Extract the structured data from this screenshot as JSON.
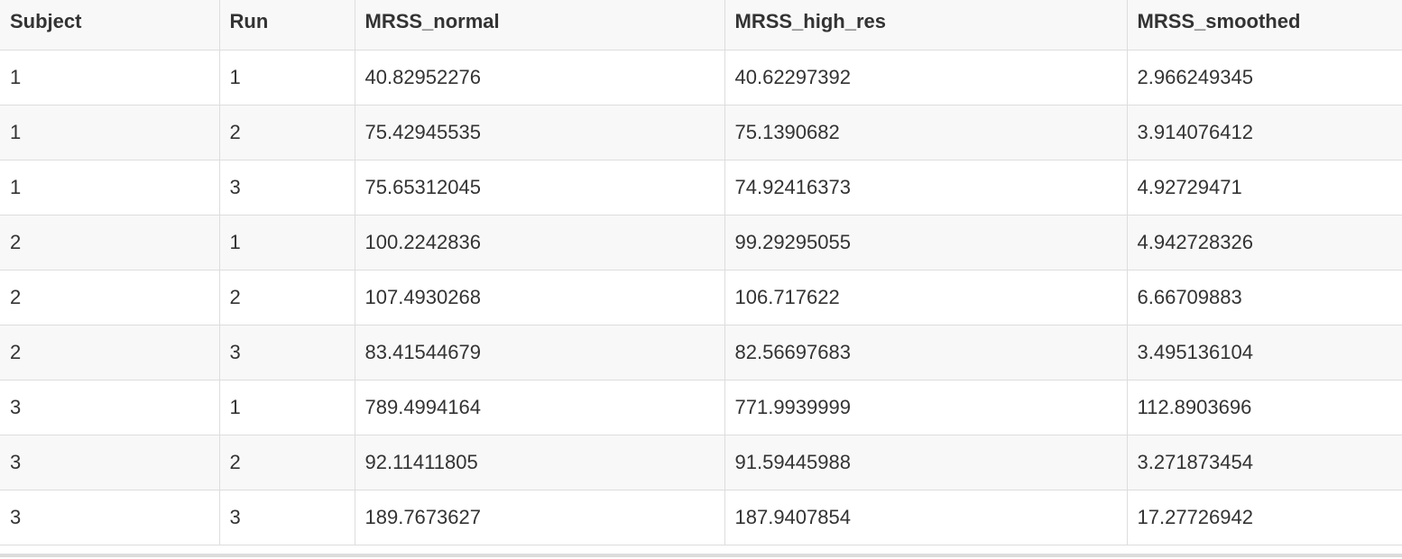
{
  "table": {
    "headers": [
      "Subject",
      "Run",
      "MRSS_normal",
      "MRSS_high_res",
      "MRSS_smoothed"
    ],
    "rows": [
      [
        "1",
        "1",
        "40.82952276",
        "40.62297392",
        "2.966249345"
      ],
      [
        "1",
        "2",
        "75.42945535",
        "75.1390682",
        "3.914076412"
      ],
      [
        "1",
        "3",
        "75.65312045",
        "74.92416373",
        "4.92729471"
      ],
      [
        "2",
        "1",
        "100.2242836",
        "99.29295055",
        "4.942728326"
      ],
      [
        "2",
        "2",
        "107.4930268",
        "106.717622",
        "6.66709883"
      ],
      [
        "2",
        "3",
        "83.41544679",
        "82.56697683",
        "3.495136104"
      ],
      [
        "3",
        "1",
        "789.4994164",
        "771.9939999",
        "112.8903696"
      ],
      [
        "3",
        "2",
        "92.11411805",
        "91.59445988",
        "3.271873454"
      ],
      [
        "3",
        "3",
        "189.7673627",
        "187.9407854",
        "17.27726942"
      ]
    ]
  },
  "colors": {
    "header_bg": "#f8f8f8",
    "row_alt_bg": "#f8f8f8",
    "border": "#dddddd",
    "text": "#333333"
  }
}
